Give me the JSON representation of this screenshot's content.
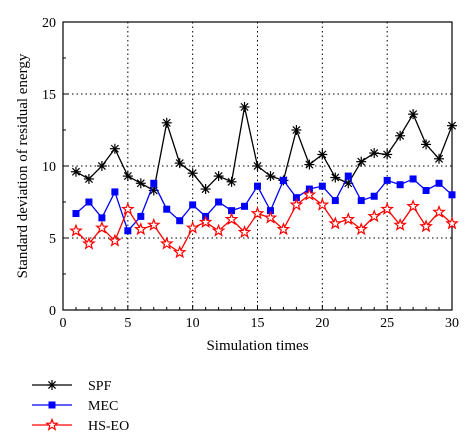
{
  "chart_data": {
    "type": "line",
    "title": "",
    "xlabel": "Simulation times",
    "ylabel": "Standard deviation of residual energy",
    "xlim": [
      0,
      30
    ],
    "ylim": [
      0,
      20
    ],
    "xticks": [
      0,
      5,
      10,
      15,
      20,
      25,
      30
    ],
    "yticks": [
      0,
      5,
      10,
      15,
      20
    ],
    "grid": true,
    "legend_position": "below",
    "x": [
      1,
      2,
      3,
      4,
      5,
      6,
      7,
      8,
      9,
      10,
      11,
      12,
      13,
      14,
      15,
      16,
      17,
      18,
      19,
      20,
      21,
      22,
      23,
      24,
      25,
      26,
      27,
      28,
      29,
      30
    ],
    "series": [
      {
        "name": "SPF",
        "color": "#000000",
        "marker": "asterisk",
        "values": [
          9.6,
          9.1,
          10.0,
          11.2,
          9.3,
          8.8,
          8.3,
          13.0,
          10.2,
          9.5,
          8.4,
          9.3,
          8.9,
          14.1,
          10.0,
          9.3,
          9.0,
          12.5,
          10.1,
          10.8,
          9.2,
          8.8,
          10.3,
          10.9,
          10.8,
          12.1,
          13.6,
          11.5,
          10.5,
          12.8
        ]
      },
      {
        "name": "MEC",
        "color": "#0000ff",
        "marker": "square",
        "values": [
          6.7,
          7.5,
          6.4,
          8.2,
          5.5,
          6.5,
          8.8,
          7.0,
          6.2,
          7.3,
          6.5,
          7.5,
          6.9,
          7.2,
          8.6,
          6.9,
          9.0,
          7.8,
          8.4,
          8.6,
          7.6,
          9.3,
          7.6,
          7.9,
          9.0,
          8.7,
          9.1,
          8.3,
          8.8,
          8.0
        ]
      },
      {
        "name": "HS-EO",
        "color": "#ff0000",
        "marker": "star",
        "values": [
          5.5,
          4.6,
          5.7,
          4.8,
          7.0,
          5.6,
          5.9,
          4.6,
          4.0,
          5.7,
          6.1,
          5.5,
          6.3,
          5.4,
          6.7,
          6.4,
          5.6,
          7.3,
          8.0,
          7.3,
          6.0,
          6.3,
          5.6,
          6.5,
          7.0,
          5.9,
          7.2,
          5.8,
          6.8,
          6.0
        ]
      }
    ]
  }
}
